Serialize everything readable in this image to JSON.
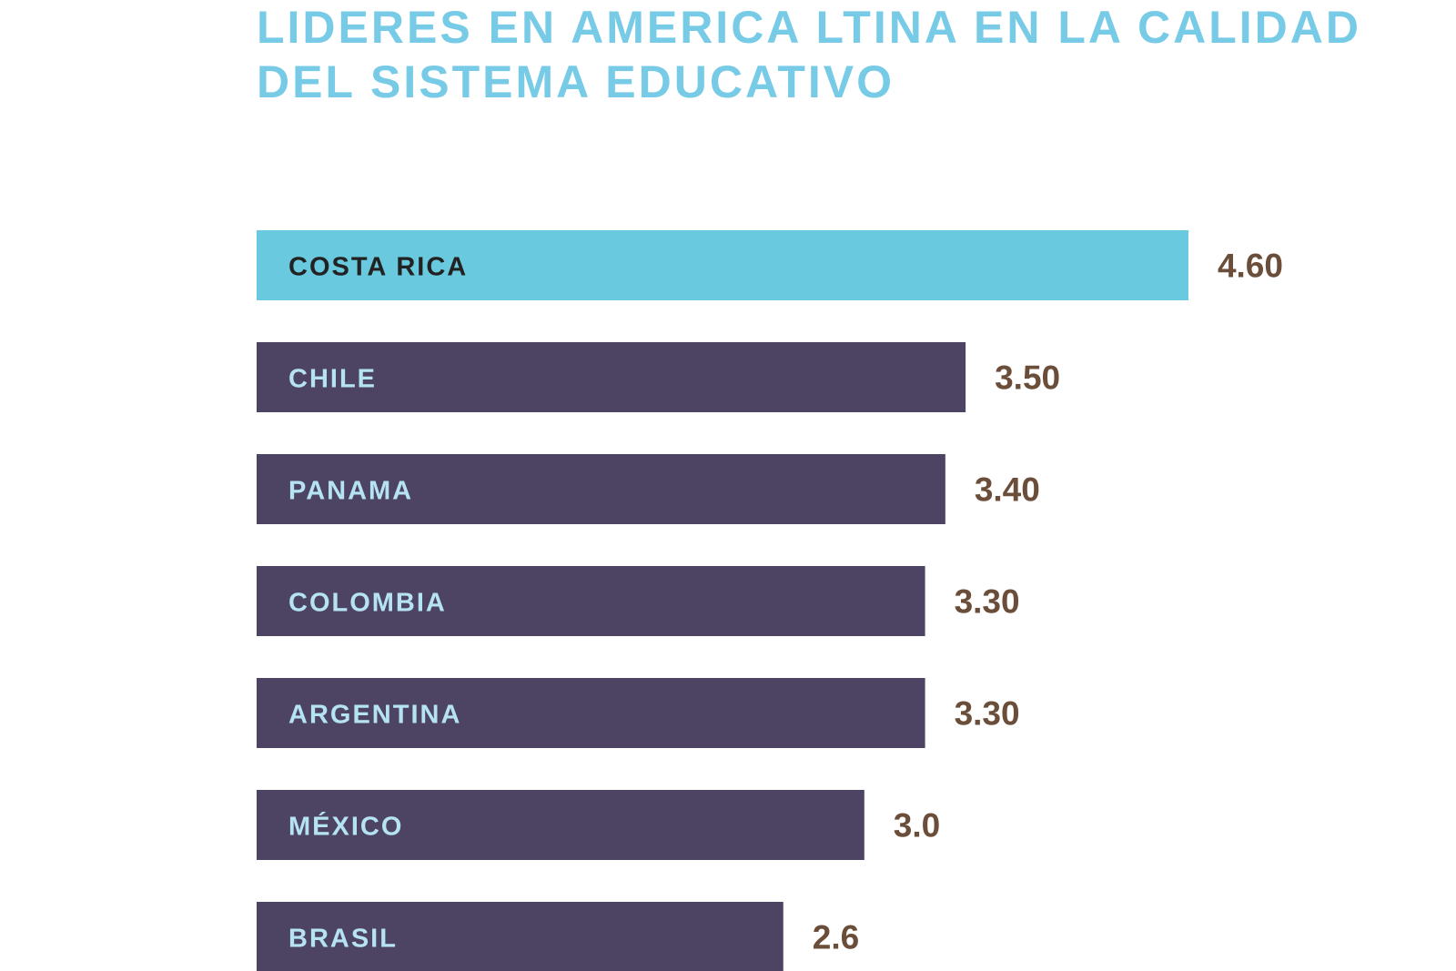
{
  "title_line1": "LIDERES EN AMERICA LTINA  EN LA CALIDAD",
  "title_line2": "DEL SISTEMA EDUCATIVO",
  "colors": {
    "title": "#77cbe6",
    "highlight_bar": "#69c9de",
    "bar": "#4d4464",
    "highlight_label": "#222222",
    "bar_label": "#b6e3f2",
    "value": "#6b4e3a"
  },
  "chart_data": {
    "type": "bar",
    "orientation": "horizontal",
    "title": "LIDERES EN AMERICA LTINA  EN LA CALIDAD DEL SISTEMA EDUCATIVO",
    "categories": [
      "COSTA RICA",
      "CHILE",
      "PANAMA",
      "COLOMBIA",
      "ARGENTINA",
      "MÉXICO",
      "BRASIL"
    ],
    "values": [
      4.6,
      3.5,
      3.4,
      3.3,
      3.3,
      3.0,
      2.6
    ],
    "value_labels": [
      "4.60",
      "3.50",
      "3.40",
      "3.30",
      "3.30",
      "3.0",
      "2.6"
    ],
    "highlight": "COSTA RICA",
    "xlabel": "",
    "ylabel": "",
    "grid": false,
    "legend": false
  }
}
